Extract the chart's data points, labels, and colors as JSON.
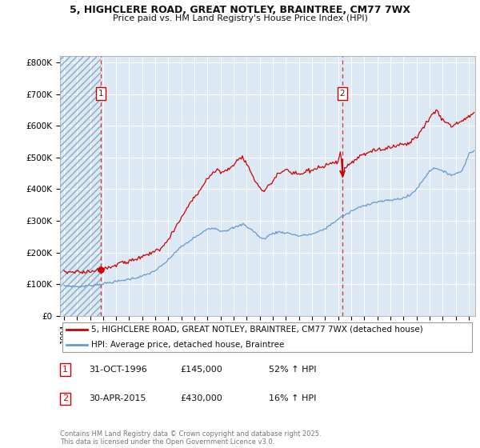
{
  "title_line1": "5, HIGHCLERE ROAD, GREAT NOTLEY, BRAINTREE, CM77 7WX",
  "title_line2": "Price paid vs. HM Land Registry's House Price Index (HPI)",
  "ylim": [
    0,
    820000
  ],
  "xlim_start": 1993.7,
  "xlim_end": 2025.5,
  "yticks": [
    0,
    100000,
    200000,
    300000,
    400000,
    500000,
    600000,
    700000,
    800000
  ],
  "ytick_labels": [
    "£0",
    "£100K",
    "£200K",
    "£300K",
    "£400K",
    "£500K",
    "£600K",
    "£700K",
    "£800K"
  ],
  "purchase1_x": 1996.83,
  "purchase1_y": 145000,
  "purchase1_label": "1",
  "purchase2_x": 2015.33,
  "purchase2_y": 430000,
  "purchase2_label": "2",
  "line1_color": "#cc0000",
  "line2_color": "#6699cc",
  "legend_line1": "5, HIGHCLERE ROAD, GREAT NOTLEY, BRAINTREE, CM77 7WX (detached house)",
  "legend_line2": "HPI: Average price, detached house, Braintree",
  "annotation1_date": "31-OCT-1996",
  "annotation1_price": "£145,000",
  "annotation1_hpi": "52% ↑ HPI",
  "annotation2_date": "30-APR-2015",
  "annotation2_price": "£430,000",
  "annotation2_hpi": "16% ↑ HPI",
  "footer": "Contains HM Land Registry data © Crown copyright and database right 2025.\nThis data is licensed under the Open Government Licence v3.0.",
  "bg_color": "#ffffff",
  "plot_bg_color": "#dce9f5",
  "grid_color": "#ffffff",
  "hatch_color": "#b0c4d8"
}
